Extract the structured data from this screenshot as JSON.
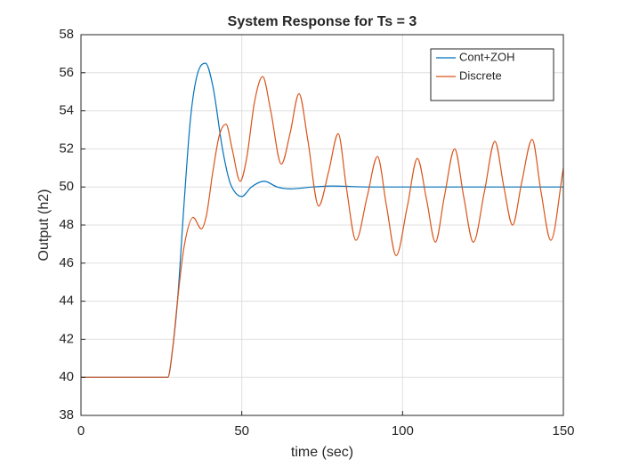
{
  "chart_data": {
    "type": "line",
    "title": "System Response for Ts = 3",
    "xlabel": "time (sec)",
    "ylabel": "Output (h2)",
    "xlim": [
      0,
      150
    ],
    "xticks": [
      0,
      50,
      100,
      150
    ],
    "ylim": [
      38,
      58
    ],
    "yticks": [
      38,
      40,
      42,
      44,
      46,
      48,
      50,
      52,
      54,
      56,
      58
    ],
    "grid": true,
    "legend": "northeast",
    "series": [
      {
        "name": "Cont+ZOH",
        "color": "#0072bd",
        "x": [
          0,
          27,
          28.5,
          30,
          32,
          34,
          36,
          38.7,
          41,
          44,
          46.2,
          48,
          50,
          53,
          57,
          61,
          65,
          72,
          78,
          90,
          150
        ],
        "values": [
          40,
          40,
          41.5,
          44,
          49,
          53.5,
          55.8,
          56.5,
          55.3,
          52,
          50.3,
          49.7,
          49.5,
          50,
          50.3,
          50,
          49.9,
          50,
          50.05,
          50,
          50
        ]
      },
      {
        "name": "Discrete",
        "color": "#d95319",
        "x": [
          0,
          27,
          28.5,
          30,
          32,
          34.9,
          37.4,
          39,
          41,
          43,
          45.1,
          47,
          49.5,
          51.5,
          54,
          56.5,
          59,
          62.3,
          65,
          67.8,
          70.5,
          73.9,
          77,
          80,
          82.5,
          85.5,
          89,
          92.2,
          95,
          98,
          101.5,
          104.6,
          107.5,
          110.2,
          113,
          116.2,
          119,
          122,
          125.5,
          128.7,
          131.5,
          134.2,
          137,
          140.3,
          143,
          146.1,
          150
        ],
        "values": [
          40,
          40,
          41.5,
          44,
          46.8,
          48.4,
          47.8,
          48.5,
          50.8,
          52.7,
          53.3,
          52,
          50.3,
          51.5,
          54.5,
          55.8,
          54,
          51.2,
          52.8,
          54.9,
          52.5,
          49,
          50.8,
          52.8,
          50,
          47.2,
          49.5,
          51.6,
          49,
          46.4,
          49,
          51.5,
          49.3,
          47.1,
          49.5,
          52,
          49.5,
          47.1,
          49.8,
          52.4,
          50,
          48,
          50.2,
          52.5,
          49.8,
          47.2,
          51
        ]
      }
    ]
  }
}
